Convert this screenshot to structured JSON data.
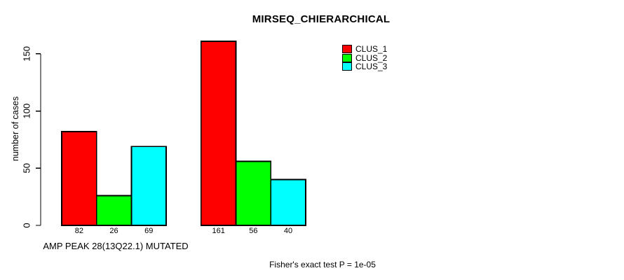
{
  "chart_data": {
    "type": "bar",
    "title": "MIRSEQ_CHIERARCHICAL",
    "ylabel": "number of cases",
    "xlabel": "AMP PEAK 28(13Q22.1) MUTATED",
    "annotation": "Fisher's exact test P = 1e-05",
    "categories": [
      "AMP PEAK 28(13Q22.1) MUTATED",
      ""
    ],
    "series": [
      {
        "name": "CLUS_1",
        "color": "#ff0000",
        "values": [
          82,
          161
        ]
      },
      {
        "name": "CLUS_2",
        "color": "#00ff00",
        "values": [
          26,
          56
        ]
      },
      {
        "name": "CLUS_3",
        "color": "#00ffff",
        "values": [
          69,
          40
        ]
      }
    ],
    "bar_labels": [
      [
        "82",
        "26",
        "69"
      ],
      [
        "161",
        "56",
        "40"
      ]
    ],
    "yticks": [
      0,
      50,
      100,
      150
    ],
    "ylim": [
      0,
      165
    ],
    "grid": false,
    "legend_position": "top-right",
    "bar_border_color": "#000000",
    "background_color": "#ffffff",
    "text_color": "#000000"
  }
}
